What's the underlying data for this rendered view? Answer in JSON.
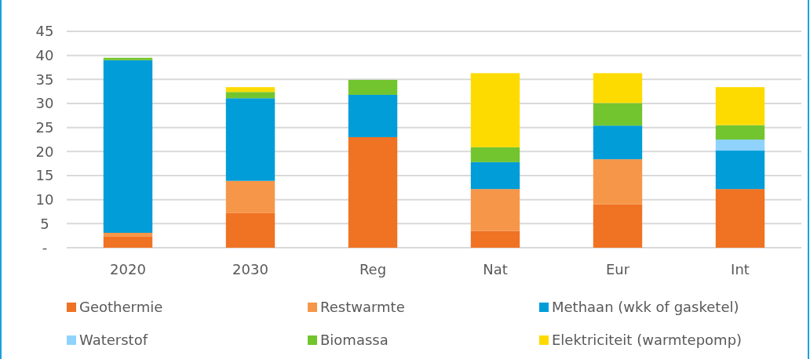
{
  "chart_data": {
    "type": "bar",
    "stacked": true,
    "categories": [
      "2020",
      "2030",
      "Reg",
      "Nat",
      "Eur",
      "Int"
    ],
    "series": [
      {
        "name": "Geothermie",
        "color": "#f07223",
        "values": [
          2.3,
          7.2,
          23.0,
          3.5,
          9.0,
          12.2
        ]
      },
      {
        "name": "Restwarmte",
        "color": "#f69649",
        "values": [
          0.8,
          6.7,
          0,
          8.7,
          9.4,
          0
        ]
      },
      {
        "name": "Methaan (wkk of gasketel)",
        "color": "#009dd8",
        "values": [
          35.9,
          17.2,
          8.8,
          5.6,
          7.0,
          8.0
        ]
      },
      {
        "name": "Waterstof",
        "color": "#8fd3fc",
        "values": [
          0,
          0,
          0,
          0,
          0,
          2.3
        ]
      },
      {
        "name": "Biomassa",
        "color": "#72c52e",
        "values": [
          0.5,
          1.3,
          3.1,
          3.1,
          4.7,
          3.0
        ]
      },
      {
        "name": "Elektriciteit (warmtepomp)",
        "color": "#fedb00",
        "values": [
          0,
          1.0,
          0,
          15.4,
          6.2,
          7.9
        ]
      }
    ],
    "ylim": [
      0,
      45
    ],
    "yticks": [
      {
        "value": 0,
        "label": "-"
      },
      5,
      10,
      15,
      20,
      25,
      30,
      35,
      40,
      45
    ],
    "grid": "y",
    "legend": "bottom"
  }
}
